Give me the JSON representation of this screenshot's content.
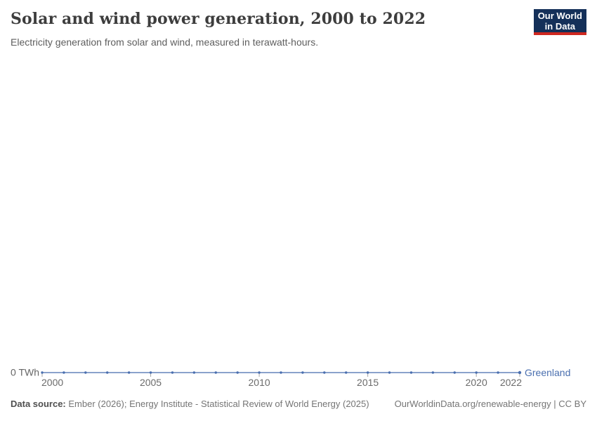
{
  "header": {
    "title": "Solar and wind power generation, 2000 to 2022",
    "subtitle": "Electricity generation from solar and wind, measured in terawatt-hours."
  },
  "logo": {
    "line1": "Our World",
    "line2": "in Data",
    "bg_color": "#143059",
    "accent_color": "#CE2820"
  },
  "chart_data": {
    "type": "line",
    "title": "Solar and wind power generation, 2000 to 2022",
    "xlabel": "",
    "ylabel": "",
    "x": [
      2000,
      2001,
      2002,
      2003,
      2004,
      2005,
      2006,
      2007,
      2008,
      2009,
      2010,
      2011,
      2012,
      2013,
      2014,
      2015,
      2016,
      2017,
      2018,
      2019,
      2020,
      2021,
      2022
    ],
    "series": [
      {
        "name": "Greenland",
        "color": "#4A6FAF",
        "values": [
          0,
          0,
          0,
          0,
          0,
          0,
          0,
          0,
          0,
          0,
          0,
          0,
          0,
          0,
          0,
          0,
          0,
          0,
          0,
          0,
          0,
          0,
          0
        ]
      }
    ],
    "x_ticks": [
      2000,
      2005,
      2010,
      2015,
      2020,
      2022
    ],
    "xlim": [
      2000,
      2022
    ],
    "y_zero_label": "0 TWh",
    "grid": false,
    "legend": "end-of-line-label",
    "axis_label_color": "#6b6b6b",
    "tick_color": "#a5a5a5"
  },
  "footer": {
    "datasource_label": "Data source:",
    "datasource_text": " Ember (2026); Energy Institute - Statistical Review of World Energy (2025)",
    "attribution": "OurWorldinData.org/renewable-energy | CC BY"
  }
}
